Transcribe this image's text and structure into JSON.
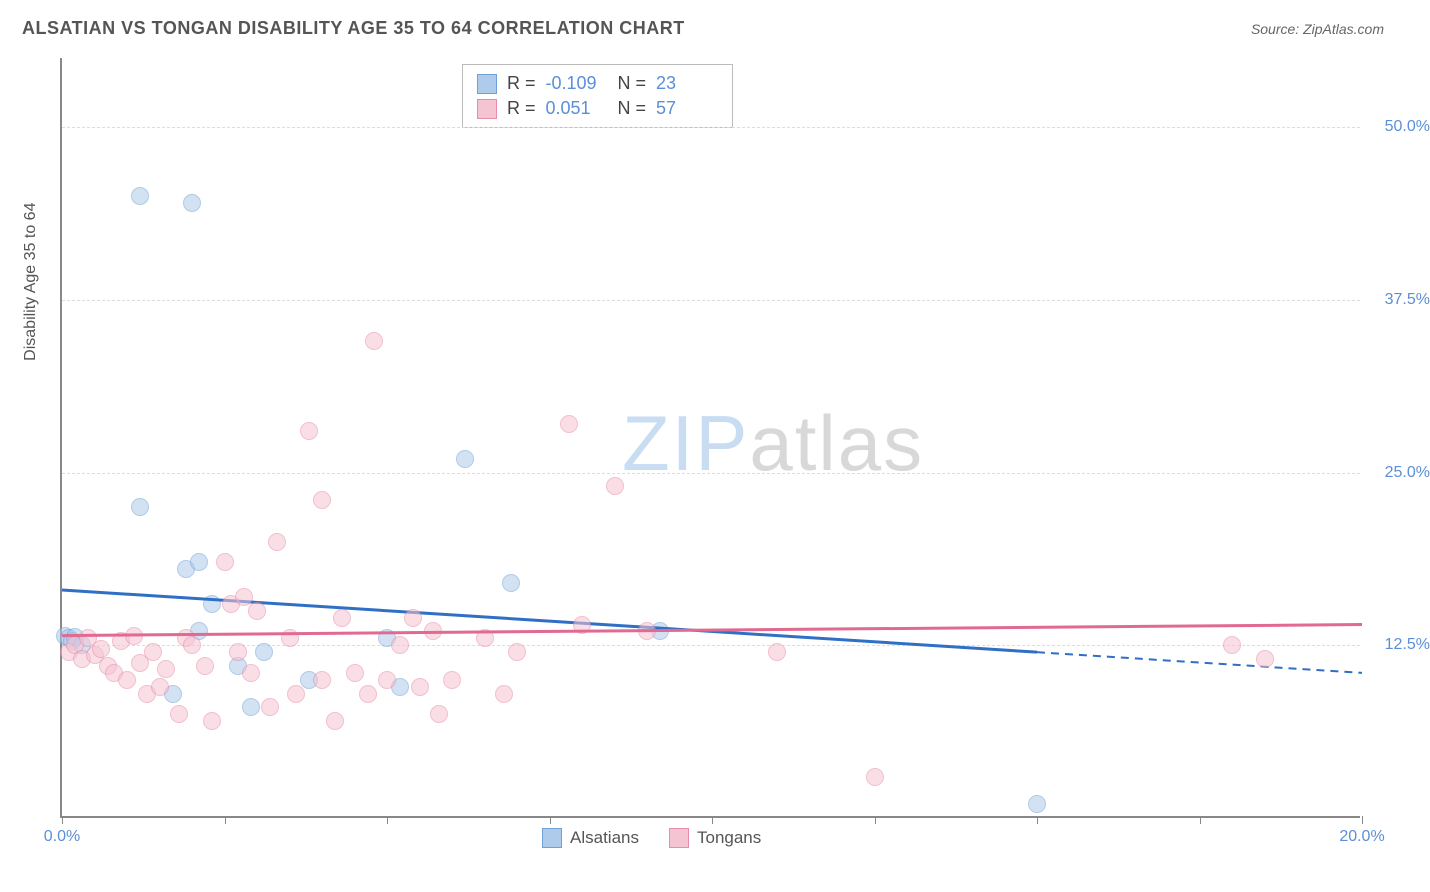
{
  "title": "ALSATIAN VS TONGAN DISABILITY AGE 35 TO 64 CORRELATION CHART",
  "source": "Source: ZipAtlas.com",
  "yaxis_label": "Disability Age 35 to 64",
  "watermark": {
    "part1": "ZIP",
    "part2": "atlas"
  },
  "chart": {
    "type": "scatter",
    "xlim": [
      0,
      20
    ],
    "ylim": [
      0,
      55
    ],
    "xticks": [
      0,
      2.5,
      5,
      7.5,
      10,
      12.5,
      15,
      17.5,
      20
    ],
    "xtick_labels": {
      "0": "0.0%",
      "20": "20.0%"
    },
    "yticks": [
      12.5,
      25.0,
      37.5,
      50.0
    ],
    "ytick_labels": [
      "12.5%",
      "25.0%",
      "37.5%",
      "50.0%"
    ],
    "background_color": "#ffffff",
    "grid_color": "#dddddd",
    "axis_color": "#888888",
    "tick_label_color": "#5b8fd6",
    "point_radius": 9,
    "point_opacity": 0.55,
    "series": [
      {
        "name": "Alsatians",
        "fill": "#aecbeb",
        "stroke": "#6fa0d8",
        "R": "-0.109",
        "N": "23",
        "trend": {
          "y_at_x0": 16.5,
          "y_at_x20": 10.5,
          "solid_until_x": 15.0,
          "color": "#2f6fc4",
          "width": 3
        },
        "points": [
          [
            0.05,
            13.2
          ],
          [
            0.1,
            13.0
          ],
          [
            0.15,
            12.8
          ],
          [
            0.2,
            13.1
          ],
          [
            0.3,
            12.5
          ],
          [
            1.2,
            22.5
          ],
          [
            1.2,
            45.0
          ],
          [
            1.7,
            9.0
          ],
          [
            1.9,
            18.0
          ],
          [
            2.0,
            44.5
          ],
          [
            2.1,
            13.5
          ],
          [
            2.1,
            18.5
          ],
          [
            2.3,
            15.5
          ],
          [
            2.7,
            11.0
          ],
          [
            2.9,
            8.0
          ],
          [
            3.1,
            12.0
          ],
          [
            3.8,
            10.0
          ],
          [
            5.0,
            13.0
          ],
          [
            5.2,
            9.5
          ],
          [
            6.2,
            26.0
          ],
          [
            6.9,
            17.0
          ],
          [
            9.2,
            13.5
          ],
          [
            15.0,
            1.0
          ]
        ]
      },
      {
        "name": "Tongans",
        "fill": "#f5c4d2",
        "stroke": "#e88ca8",
        "R": "0.051",
        "N": "57",
        "trend": {
          "y_at_x0": 13.2,
          "y_at_x20": 14.0,
          "solid_until_x": 20.0,
          "color": "#e06a92",
          "width": 3
        },
        "points": [
          [
            0.1,
            12.0
          ],
          [
            0.2,
            12.5
          ],
          [
            0.3,
            11.5
          ],
          [
            0.4,
            13.0
          ],
          [
            0.5,
            11.8
          ],
          [
            0.6,
            12.2
          ],
          [
            0.7,
            11.0
          ],
          [
            0.8,
            10.5
          ],
          [
            0.9,
            12.8
          ],
          [
            1.0,
            10.0
          ],
          [
            1.1,
            13.2
          ],
          [
            1.2,
            11.2
          ],
          [
            1.3,
            9.0
          ],
          [
            1.4,
            12.0
          ],
          [
            1.5,
            9.5
          ],
          [
            1.6,
            10.8
          ],
          [
            1.8,
            7.5
          ],
          [
            1.9,
            13.0
          ],
          [
            2.0,
            12.5
          ],
          [
            2.2,
            11.0
          ],
          [
            2.3,
            7.0
          ],
          [
            2.5,
            18.5
          ],
          [
            2.6,
            15.5
          ],
          [
            2.7,
            12.0
          ],
          [
            2.8,
            16.0
          ],
          [
            2.9,
            10.5
          ],
          [
            3.0,
            15.0
          ],
          [
            3.2,
            8.0
          ],
          [
            3.3,
            20.0
          ],
          [
            3.5,
            13.0
          ],
          [
            3.6,
            9.0
          ],
          [
            3.8,
            28.0
          ],
          [
            4.0,
            23.0
          ],
          [
            4.0,
            10.0
          ],
          [
            4.2,
            7.0
          ],
          [
            4.3,
            14.5
          ],
          [
            4.5,
            10.5
          ],
          [
            4.7,
            9.0
          ],
          [
            4.8,
            34.5
          ],
          [
            5.0,
            10.0
          ],
          [
            5.2,
            12.5
          ],
          [
            5.5,
            9.5
          ],
          [
            5.7,
            13.5
          ],
          [
            5.8,
            7.5
          ],
          [
            6.0,
            10.0
          ],
          [
            6.5,
            13.0
          ],
          [
            6.8,
            9.0
          ],
          [
            7.0,
            12.0
          ],
          [
            7.8,
            28.5
          ],
          [
            8.0,
            14.0
          ],
          [
            8.5,
            24.0
          ],
          [
            9.0,
            13.5
          ],
          [
            11.0,
            12.0
          ],
          [
            12.5,
            3.0
          ],
          [
            18.0,
            12.5
          ],
          [
            18.5,
            11.5
          ],
          [
            5.4,
            14.5
          ]
        ]
      }
    ],
    "bottom_legend": [
      {
        "label": "Alsatians",
        "fill": "#aecbeb",
        "stroke": "#6fa0d8"
      },
      {
        "label": "Tongans",
        "fill": "#f5c4d2",
        "stroke": "#e88ca8"
      }
    ]
  }
}
